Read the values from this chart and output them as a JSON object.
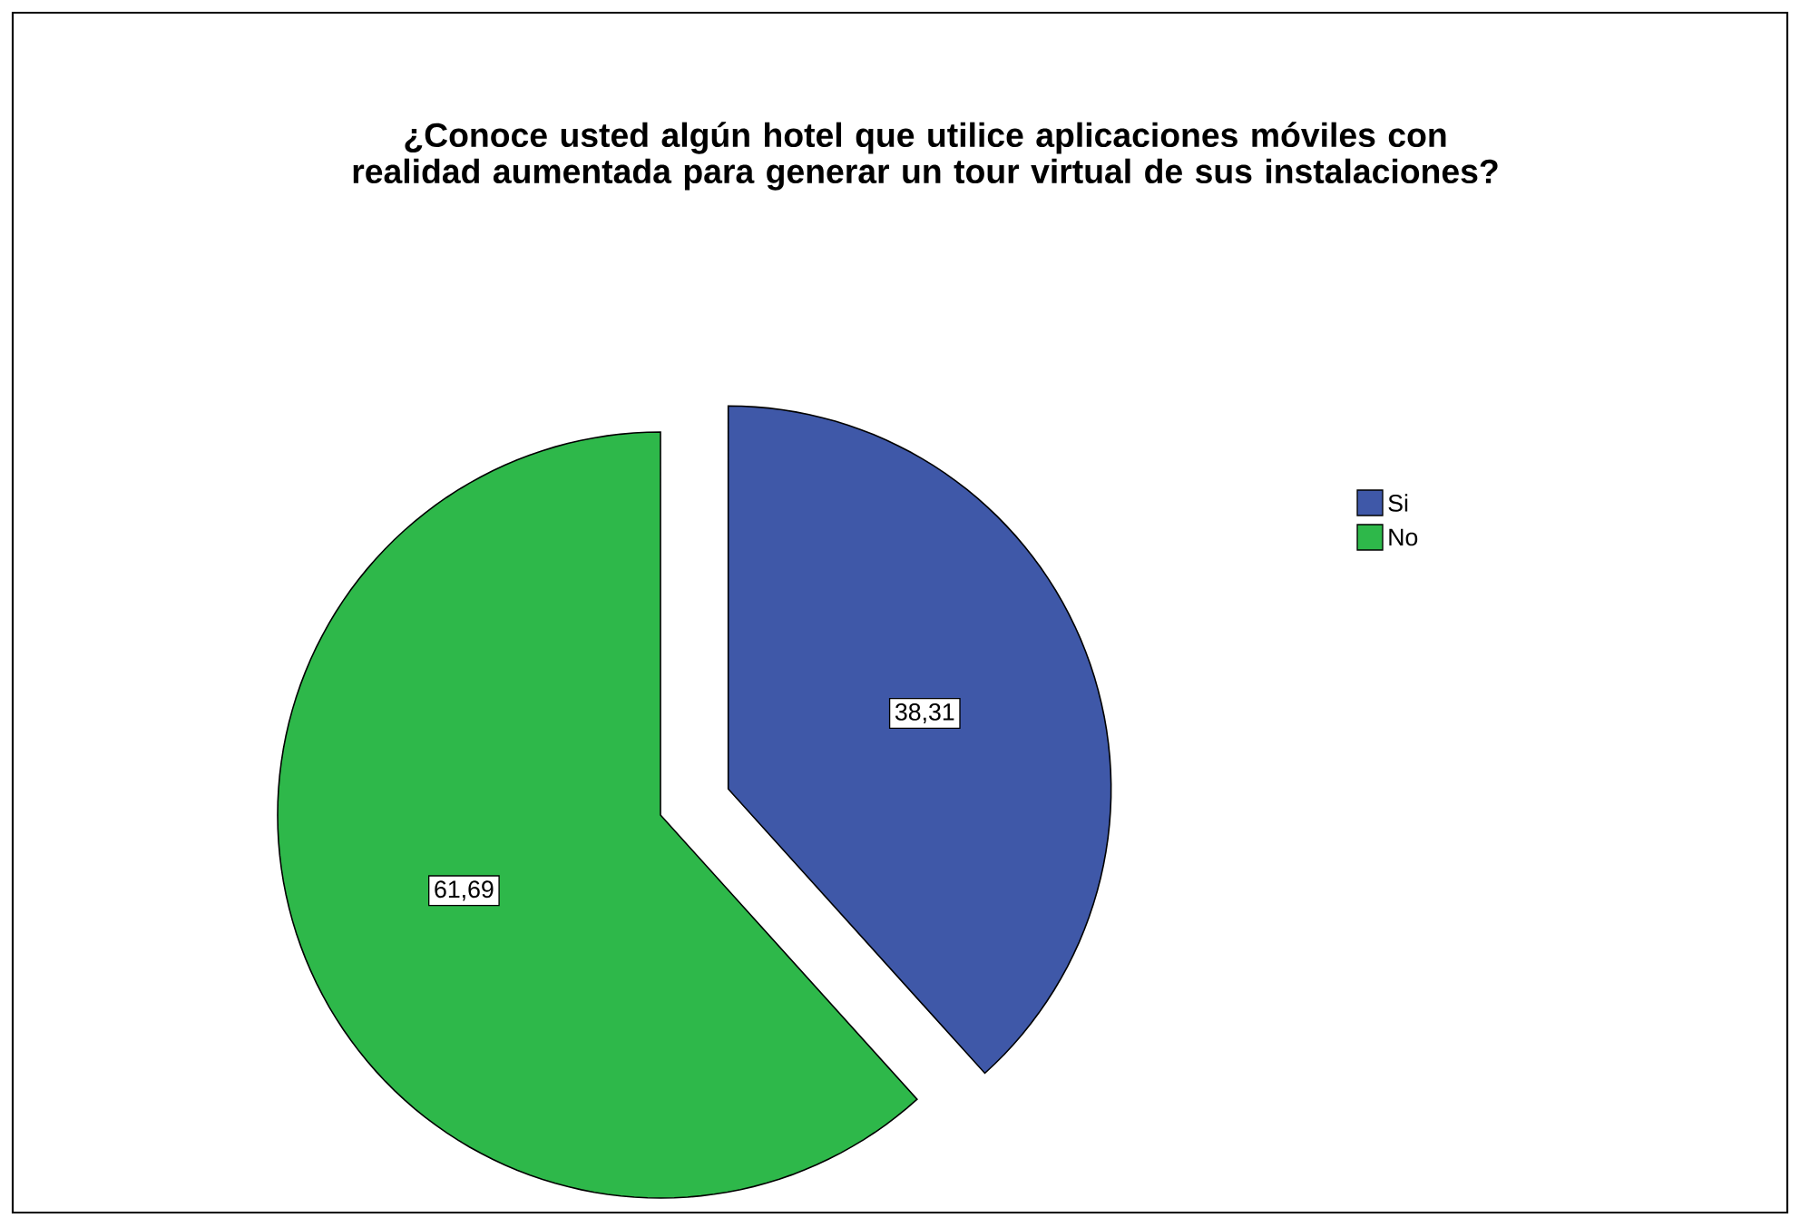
{
  "chart_data": {
    "type": "pie",
    "title": "¿Conoce usted algún hotel que utilice aplicaciones móviles con realidad aumentada para generar un tour virtual de sus instalaciones?",
    "categories": [
      "Si",
      "No"
    ],
    "values": [
      38.31,
      61.69
    ],
    "colors": [
      "#3f58a8",
      "#2eb84a"
    ],
    "value_labels": [
      "38,31",
      "61,69"
    ],
    "legend": "right"
  }
}
